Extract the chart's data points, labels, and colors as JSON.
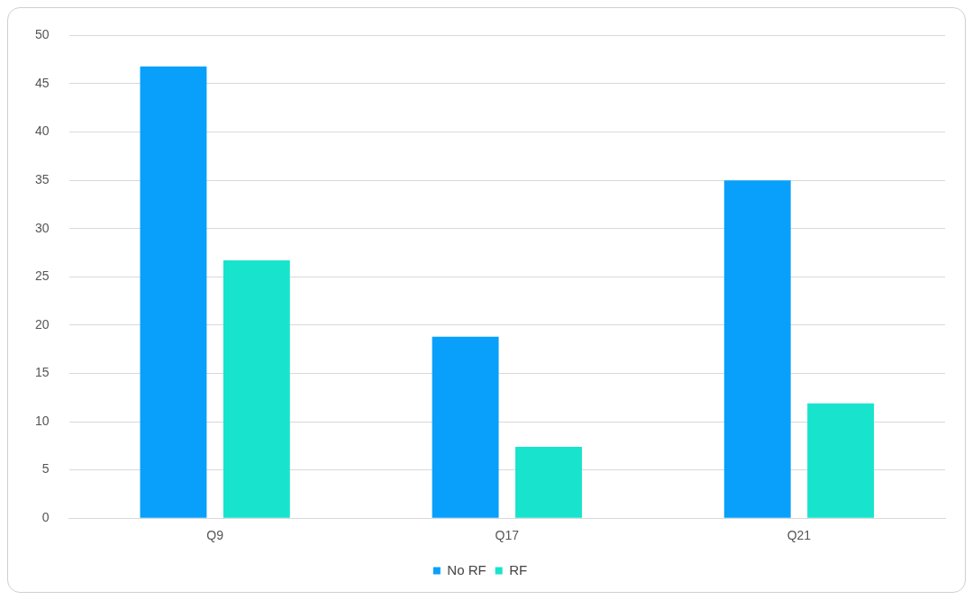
{
  "chart_data": {
    "type": "bar",
    "categories": [
      "Q9",
      "Q17",
      "Q21"
    ],
    "series": [
      {
        "name": "No RF",
        "color": "#08a0fa",
        "values": [
          46.8,
          18.8,
          35
        ]
      },
      {
        "name": "RF",
        "color": "#18e3cd",
        "values": [
          26.7,
          7.4,
          11.9
        ]
      }
    ],
    "ylim": [
      0,
      50
    ],
    "yticks": [
      0,
      5,
      10,
      15,
      20,
      25,
      30,
      35,
      40,
      45,
      50
    ],
    "grid": "y",
    "legend": "bottom"
  }
}
